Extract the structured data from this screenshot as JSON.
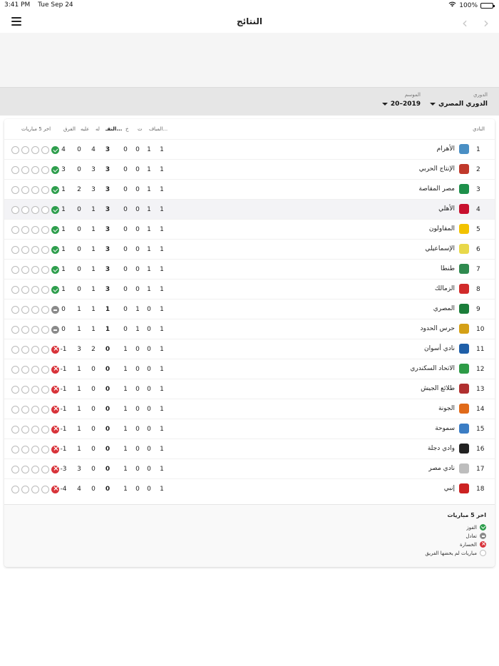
{
  "status": {
    "time": "3:41 PM",
    "date": "Tue Sep 24",
    "battery": "100%"
  },
  "nav": {
    "title": "النتائج"
  },
  "filters": {
    "league_label": "الدوري",
    "league_value": "الدوري المصري",
    "season_label": "الموسم",
    "season_value": "2019–20"
  },
  "table": {
    "headers": {
      "team": "النادي",
      "played": "المبا...",
      "won": "ف",
      "drawn": "ت",
      "lost": "خ",
      "points": "النقـ...",
      "gf": "له",
      "ga": "عليه",
      "gd": "الفرق",
      "form": "اخر 5 مباريات"
    },
    "rows": [
      {
        "pos": "1",
        "team": "الأهرام",
        "logo": "#4a8fc4",
        "p": "1",
        "w": "1",
        "d": "0",
        "l": "0",
        "pts": "3",
        "gf": "4",
        "ga": "0",
        "gd": "4",
        "form": [
          "W",
          "N",
          "N",
          "N",
          "N"
        ]
      },
      {
        "pos": "2",
        "team": "الإنتاج الحربي",
        "logo": "#c0392b",
        "p": "1",
        "w": "1",
        "d": "0",
        "l": "0",
        "pts": "3",
        "gf": "3",
        "ga": "0",
        "gd": "3",
        "form": [
          "W",
          "N",
          "N",
          "N",
          "N"
        ]
      },
      {
        "pos": "3",
        "team": "مصر المقاصة",
        "logo": "#1e8f4a",
        "p": "1",
        "w": "1",
        "d": "0",
        "l": "0",
        "pts": "3",
        "gf": "3",
        "ga": "2",
        "gd": "1",
        "form": [
          "W",
          "N",
          "N",
          "N",
          "N"
        ]
      },
      {
        "pos": "4",
        "team": "الأهلي",
        "logo": "#c8102e",
        "p": "1",
        "w": "1",
        "d": "0",
        "l": "0",
        "pts": "3",
        "gf": "1",
        "ga": "0",
        "gd": "1",
        "form": [
          "W",
          "N",
          "N",
          "N",
          "N"
        ],
        "highlight": true
      },
      {
        "pos": "5",
        "team": "المقاولون",
        "logo": "#f2c200",
        "p": "1",
        "w": "1",
        "d": "0",
        "l": "0",
        "pts": "3",
        "gf": "1",
        "ga": "0",
        "gd": "1",
        "form": [
          "W",
          "N",
          "N",
          "N",
          "N"
        ]
      },
      {
        "pos": "6",
        "team": "الإسماعيلي",
        "logo": "#e8d84a",
        "p": "1",
        "w": "1",
        "d": "0",
        "l": "0",
        "pts": "3",
        "gf": "1",
        "ga": "0",
        "gd": "1",
        "form": [
          "W",
          "N",
          "N",
          "N",
          "N"
        ]
      },
      {
        "pos": "7",
        "team": "طنطا",
        "logo": "#2f8a4f",
        "p": "1",
        "w": "1",
        "d": "0",
        "l": "0",
        "pts": "3",
        "gf": "1",
        "ga": "0",
        "gd": "1",
        "form": [
          "W",
          "N",
          "N",
          "N",
          "N"
        ]
      },
      {
        "pos": "8",
        "team": "الزمالك",
        "logo": "#d12b2b",
        "p": "1",
        "w": "1",
        "d": "0",
        "l": "0",
        "pts": "3",
        "gf": "1",
        "ga": "0",
        "gd": "1",
        "form": [
          "W",
          "N",
          "N",
          "N",
          "N"
        ]
      },
      {
        "pos": "9",
        "team": "المصري",
        "logo": "#1b7d3a",
        "p": "1",
        "w": "0",
        "d": "1",
        "l": "0",
        "pts": "1",
        "gf": "1",
        "ga": "1",
        "gd": "0",
        "form": [
          "D",
          "N",
          "N",
          "N",
          "N"
        ]
      },
      {
        "pos": "10",
        "team": "حرس الحدود",
        "logo": "#d4a017",
        "p": "1",
        "w": "0",
        "d": "1",
        "l": "0",
        "pts": "1",
        "gf": "1",
        "ga": "1",
        "gd": "0",
        "form": [
          "D",
          "N",
          "N",
          "N",
          "N"
        ]
      },
      {
        "pos": "11",
        "team": "نادي أسوان",
        "logo": "#1f5fa8",
        "p": "1",
        "w": "0",
        "d": "0",
        "l": "1",
        "pts": "0",
        "gf": "2",
        "ga": "3",
        "gd": "-1",
        "form": [
          "L",
          "N",
          "N",
          "N",
          "N"
        ]
      },
      {
        "pos": "12",
        "team": "الاتحاد السكندري",
        "logo": "#2e9b47",
        "p": "1",
        "w": "0",
        "d": "0",
        "l": "1",
        "pts": "0",
        "gf": "0",
        "ga": "1",
        "gd": "-1",
        "form": [
          "L",
          "N",
          "N",
          "N",
          "N"
        ]
      },
      {
        "pos": "13",
        "team": "طلائع الجيش",
        "logo": "#b03030",
        "p": "1",
        "w": "0",
        "d": "0",
        "l": "1",
        "pts": "0",
        "gf": "0",
        "ga": "1",
        "gd": "-1",
        "form": [
          "L",
          "N",
          "N",
          "N",
          "N"
        ]
      },
      {
        "pos": "14",
        "team": "الجونة",
        "logo": "#e06a1a",
        "p": "1",
        "w": "0",
        "d": "0",
        "l": "1",
        "pts": "0",
        "gf": "0",
        "ga": "1",
        "gd": "-1",
        "form": [
          "L",
          "N",
          "N",
          "N",
          "N"
        ]
      },
      {
        "pos": "15",
        "team": "سموحة",
        "logo": "#3b7dc4",
        "p": "1",
        "w": "0",
        "d": "0",
        "l": "1",
        "pts": "0",
        "gf": "0",
        "ga": "1",
        "gd": "-1",
        "form": [
          "L",
          "N",
          "N",
          "N",
          "N"
        ]
      },
      {
        "pos": "16",
        "team": "وادي دجلة",
        "logo": "#222222",
        "p": "1",
        "w": "0",
        "d": "0",
        "l": "1",
        "pts": "0",
        "gf": "0",
        "ga": "1",
        "gd": "-1",
        "form": [
          "L",
          "N",
          "N",
          "N",
          "N"
        ]
      },
      {
        "pos": "17",
        "team": "نادي مصر",
        "logo": "#bdbdbd",
        "p": "1",
        "w": "0",
        "d": "0",
        "l": "1",
        "pts": "0",
        "gf": "0",
        "ga": "3",
        "gd": "-3",
        "form": [
          "L",
          "N",
          "N",
          "N",
          "N"
        ]
      },
      {
        "pos": "18",
        "team": "إنبي",
        "logo": "#cc2222",
        "p": "1",
        "w": "0",
        "d": "0",
        "l": "1",
        "pts": "0",
        "gf": "0",
        "ga": "4",
        "gd": "-4",
        "form": [
          "L",
          "N",
          "N",
          "N",
          "N"
        ]
      }
    ]
  },
  "legend": {
    "title": "اخر 5 مباريات",
    "items": [
      {
        "type": "W",
        "label": "الفوز"
      },
      {
        "type": "D",
        "label": "تعادل"
      },
      {
        "type": "L",
        "label": "الخسارة"
      },
      {
        "type": "N",
        "label": "مباريات لم يخضها الفريق"
      }
    ]
  },
  "colors": {
    "win": "#2e9e4d",
    "draw": "#8a8a8a",
    "loss": "#d8333a",
    "highlight_row": "#f3f3f6"
  }
}
